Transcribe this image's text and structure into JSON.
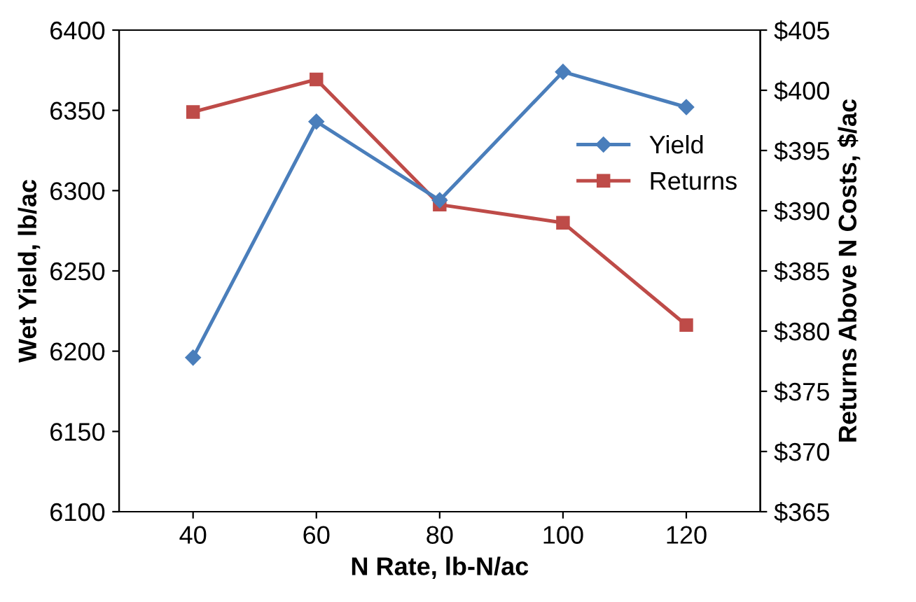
{
  "chart_data": {
    "type": "line",
    "xlabel": "N Rate, lb-N/ac",
    "ylabel": "Wet Yield, lb/ac",
    "y2label": "Returns Above N Costs, $/ac",
    "categories": [
      "40",
      "60",
      "80",
      "100",
      "120"
    ],
    "series": [
      {
        "name": "Yield",
        "color": "#4a7ebb",
        "marker": "diamond",
        "values": [
          6196,
          6343,
          6294,
          6374,
          6352
        ]
      },
      {
        "name": "Returns",
        "color": "#be4b48",
        "marker": "square",
        "axis": "y2",
        "values": [
          398.2,
          400.9,
          390.5,
          389.0,
          380.5
        ]
      }
    ],
    "ylim": [
      6100,
      6400
    ],
    "yticks": [
      6100,
      6150,
      6200,
      6250,
      6300,
      6350,
      6400
    ],
    "y2lim": [
      365,
      405
    ],
    "y2ticks": [
      {
        "value": 365,
        "label": "$365"
      },
      {
        "value": 370,
        "label": "$370"
      },
      {
        "value": 375,
        "label": "$375"
      },
      {
        "value": 380,
        "label": "$380"
      },
      {
        "value": 385,
        "label": "$385"
      },
      {
        "value": 390,
        "label": "$390"
      },
      {
        "value": 395,
        "label": "$395"
      },
      {
        "value": 400,
        "label": "$400"
      },
      {
        "value": 405,
        "label": "$405"
      }
    ],
    "grid": false,
    "legend": "right"
  }
}
